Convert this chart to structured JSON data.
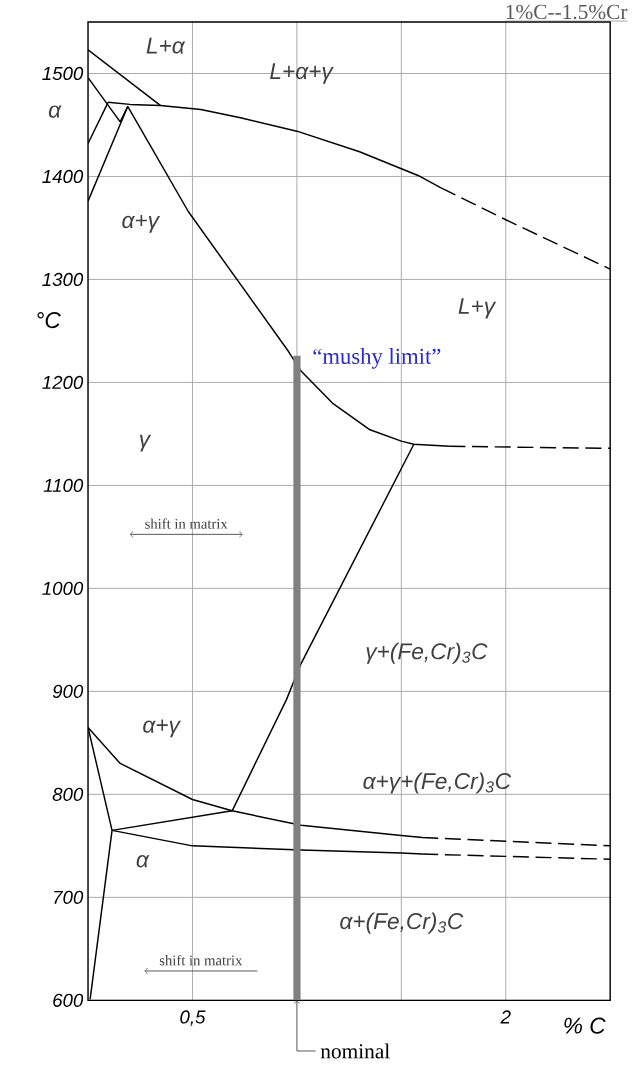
{
  "chart_data": {
    "type": "line",
    "title": "1%C--1.5%Cr",
    "xlabel": "% C",
    "ylabel": "°C",
    "xlim": [
      0,
      2.5
    ],
    "ylim": [
      600,
      1550
    ],
    "xticks": [
      {
        "value": 0,
        "label": null
      },
      {
        "value": 0.5,
        "label": "0,5"
      },
      {
        "value": 1,
        "label": null
      },
      {
        "value": 1.5,
        "label": null
      },
      2,
      {
        "value": 2.5,
        "label": null
      }
    ],
    "yticks": [
      600,
      700,
      800,
      900,
      1000,
      1100,
      1200,
      1300,
      1400,
      1500
    ],
    "grid": true,
    "marker": "none",
    "series": [
      {
        "color": "#000000",
        "x": [
          0,
          0.346
        ],
        "values": [
          1523,
          1469
        ]
      },
      {
        "color": "#000000",
        "x": [
          0.096,
          0.2,
          0.346,
          0.54,
          0.73,
          1.0,
          1.3,
          1.58,
          1.69
        ],
        "values": [
          1472,
          1470,
          1469,
          1465,
          1457,
          1444,
          1424,
          1401,
          1389
        ]
      },
      {
        "color": "#000000",
        "line_style": "dashed",
        "x": [
          1.69,
          2.0,
          2.5
        ],
        "values": [
          1389,
          1358,
          1310
        ]
      },
      {
        "color": "#000000",
        "x": [
          0,
          0.154
        ],
        "values": [
          1496,
          1453
        ]
      },
      {
        "color": "#000000",
        "x": [
          0,
          0.096
        ],
        "values": [
          1432,
          1472
        ]
      },
      {
        "color": "#000000",
        "x": [
          0,
          0.19
        ],
        "values": [
          1376,
          1468
        ]
      },
      {
        "color": "#000000",
        "x": [
          0.154,
          0.19
        ],
        "values": [
          1453,
          1468
        ]
      },
      {
        "color": "#000000",
        "x": [
          0.19,
          0.48,
          0.96,
          1.02,
          1.17,
          1.35,
          1.5,
          1.56,
          1.73
        ],
        "values": [
          1468,
          1366,
          1230,
          1211,
          1180,
          1154,
          1143,
          1140,
          1138
        ]
      },
      {
        "color": "#000000",
        "line_style": "dashed",
        "x": [
          1.73,
          2.5
        ],
        "values": [
          1138,
          1136
        ]
      },
      {
        "color": "#000000",
        "x": [
          1.56,
          1.02,
          0.95,
          0.69
        ],
        "values": [
          1140,
          927,
          892,
          784
        ]
      },
      {
        "color": "#000000",
        "x": [
          0,
          0.154,
          0.5,
          0.69,
          1.02,
          1.5,
          1.6
        ],
        "values": [
          865,
          830,
          795,
          784,
          770,
          760,
          758
        ]
      },
      {
        "color": "#000000",
        "line_style": "dashed",
        "x": [
          1.6,
          2.5
        ],
        "values": [
          758,
          750
        ]
      },
      {
        "color": "#000000",
        "x": [
          0.115,
          0.69
        ],
        "values": [
          765,
          784
        ]
      },
      {
        "color": "#000000",
        "x": [
          0.115,
          0.5,
          1.02,
          1.5,
          1.6
        ],
        "values": [
          765,
          750,
          746,
          743,
          742
        ]
      },
      {
        "color": "#000000",
        "line_style": "dashed",
        "x": [
          1.6,
          2.5
        ],
        "values": [
          742,
          737
        ]
      },
      {
        "color": "#000000",
        "x": [
          0,
          0.115,
          0.01
        ],
        "values": [
          865,
          765,
          601
        ]
      },
      {
        "type": "bar",
        "color": "#808080",
        "x": [
          1
        ],
        "values": [
          1226
        ]
      }
    ],
    "annotations": [
      "L+α",
      "L+α+γ",
      "α",
      "α+γ",
      "L+γ",
      "γ",
      "γ+(Fe,Cr)$_{3}$C",
      "α+γ",
      "α",
      "α+γ+(Fe,Cr)$_{3}$C",
      "α+(Fe,Cr)$_{3}$C",
      "shift in matrix",
      "shift in matrix",
      {
        "text": "“mushy limit”",
        "x": 1,
        "y": 1226
      },
      {
        "text": "nominal",
        "x": 1,
        "y": 600
      }
    ]
  }
}
